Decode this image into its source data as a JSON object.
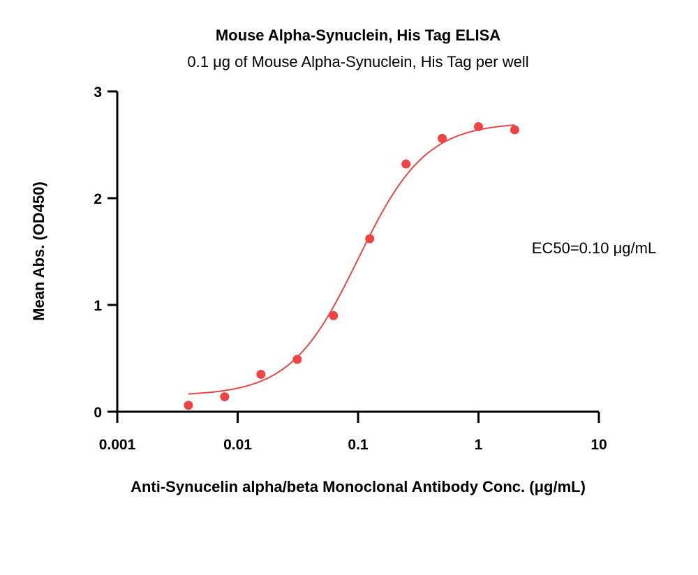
{
  "chart_data": {
    "type": "scatter",
    "title": "Mouse Alpha-Synuclein, His Tag ELISA",
    "subtitle": "0.1 μg of Mouse Alpha-Synuclein, His Tag per well",
    "xlabel": "Anti-Synucelin alpha/beta Monoclonal Antibody Conc. (μg/mL)",
    "ylabel": "Mean Abs. (OD450)",
    "xscale": "log",
    "xlim": [
      0.001,
      10
    ],
    "ylim": [
      0,
      3
    ],
    "x_ticks": [
      0.001,
      0.01,
      0.1,
      1,
      10
    ],
    "x_tick_labels": [
      "0.001",
      "0.01",
      "0.1",
      "1",
      "10"
    ],
    "y_ticks": [
      0,
      1,
      2,
      3
    ],
    "y_tick_labels": [
      "0",
      "1",
      "2",
      "3"
    ],
    "grid": false,
    "annotation": "EC50=0.10 μg/mL",
    "colors": {
      "points": "#ef4444",
      "fit": "#e34848",
      "axis": "#000000"
    },
    "series": [
      {
        "x": [
          0.0039,
          0.0078,
          0.0156,
          0.03125,
          0.0625,
          0.125,
          0.25,
          0.5,
          1,
          2
        ],
        "y": [
          0.06,
          0.14,
          0.35,
          0.49,
          0.9,
          1.62,
          2.32,
          2.56,
          2.67,
          2.64
        ]
      }
    ],
    "fit": {
      "model": "4PL",
      "bottom": 0.15,
      "top": 2.71,
      "ec50": 0.1,
      "hill": 1.55,
      "x_range": [
        0.0039,
        2
      ]
    }
  }
}
